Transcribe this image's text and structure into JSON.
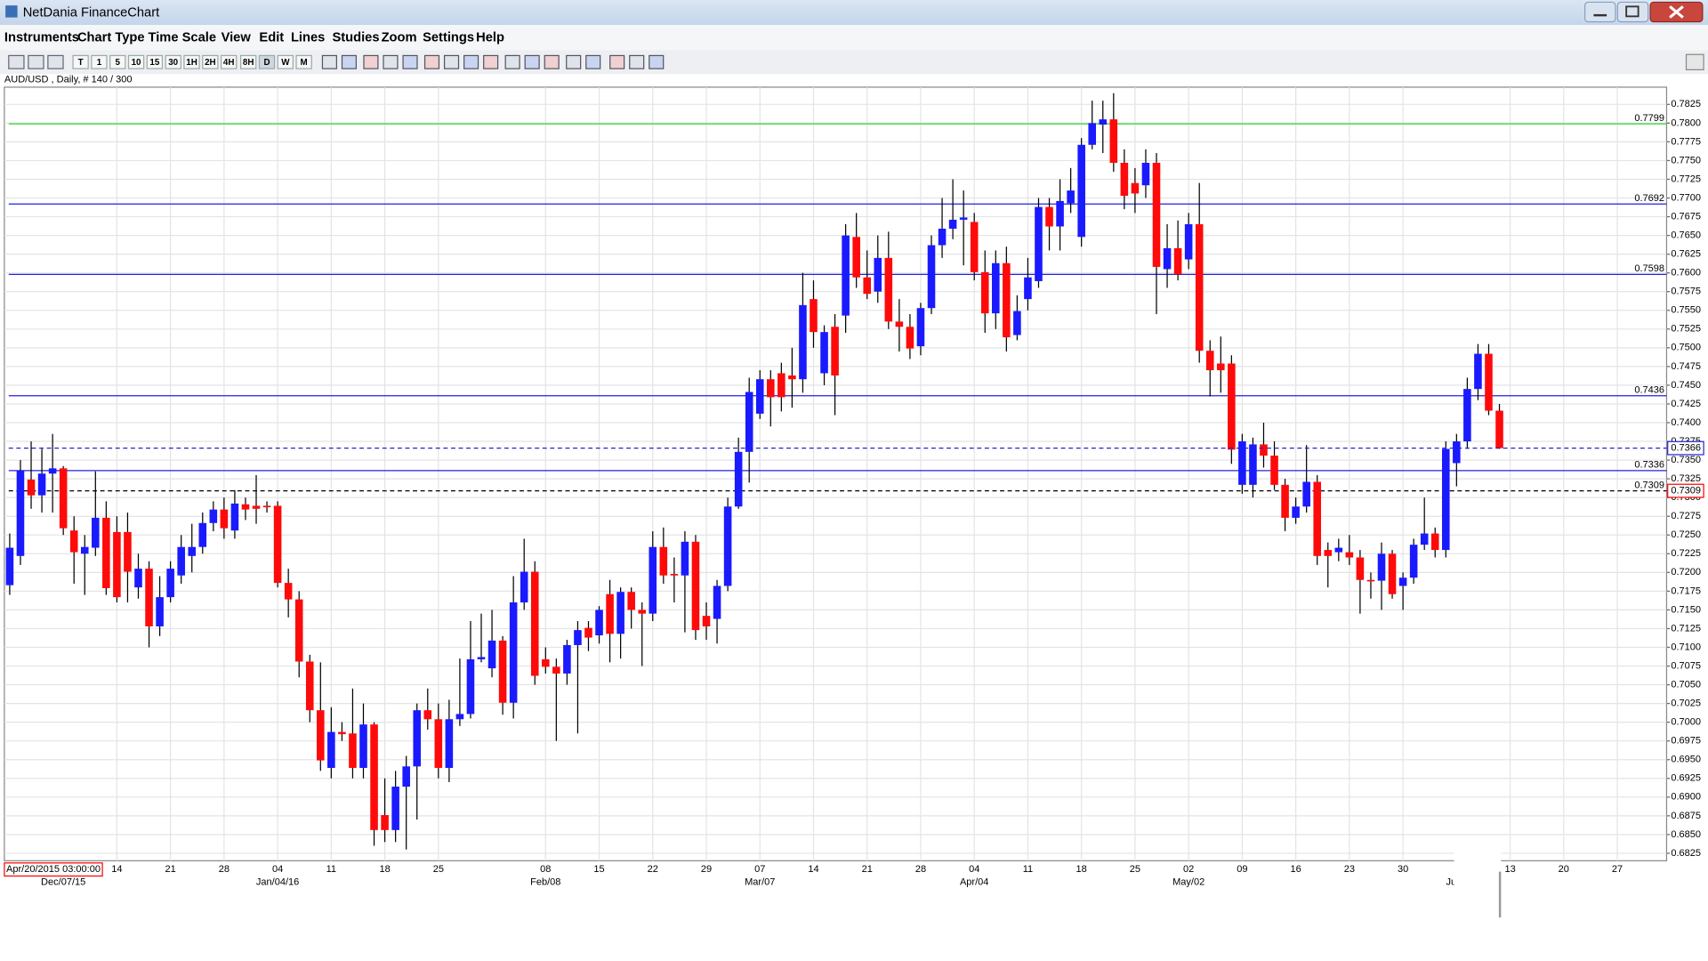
{
  "window": {
    "title": "NetDania FinanceChart",
    "menu": [
      "Instruments",
      "Chart Type",
      "Time Scale",
      "View",
      "Edit",
      "Lines",
      "Studies",
      "Zoom",
      "Settings",
      "Help"
    ],
    "timeframes": [
      "T",
      "1",
      "5",
      "10",
      "15",
      "30",
      "1H",
      "2H",
      "4H",
      "8H",
      "D",
      "W",
      "M"
    ],
    "info": "AUD/USD , Daily, # 140 / 300"
  },
  "chart_data": {
    "type": "candlestick",
    "up_color": "#1a1aff",
    "down_color": "#ff0a0a",
    "grid": true,
    "ylim": [
      0.6815,
      0.7848
    ],
    "xlim": [
      -0.5,
      154.6
    ],
    "yticks": [
      0.6825,
      {
        "value": 0.685,
        "label": "0.6850"
      },
      0.6875,
      {
        "value": 0.69,
        "label": "0.6900"
      },
      0.6925,
      {
        "value": 0.695,
        "label": "0.6950"
      },
      0.6975,
      {
        "value": 0.7,
        "label": "0.7000"
      },
      0.7025,
      {
        "value": 0.705,
        "label": "0.7050"
      },
      0.7075,
      {
        "value": 0.71,
        "label": "0.7100"
      },
      0.7125,
      {
        "value": 0.715,
        "label": "0.7150"
      },
      0.7175,
      {
        "value": 0.72,
        "label": "0.7200"
      },
      0.7225,
      {
        "value": 0.725,
        "label": "0.7250"
      },
      0.7275,
      {
        "value": 0.73,
        "label": "0.7300"
      },
      0.7325,
      {
        "value": 0.735,
        "label": "0.7350"
      },
      0.7375,
      {
        "value": 0.74,
        "label": "0.7400"
      },
      0.7425,
      {
        "value": 0.745,
        "label": "0.7450"
      },
      0.7475,
      {
        "value": 0.75,
        "label": "0.7500"
      },
      0.7525,
      {
        "value": 0.755,
        "label": "0.7550"
      },
      0.7575,
      {
        "value": 0.76,
        "label": "0.7600"
      },
      0.7625,
      {
        "value": 0.765,
        "label": "0.7650"
      },
      0.7675,
      {
        "value": 0.77,
        "label": "0.7700"
      },
      0.7725,
      {
        "value": 0.775,
        "label": "0.7750"
      },
      0.7775,
      {
        "value": 0.78,
        "label": "0.7800"
      },
      0.7825
    ],
    "xticks": [
      {
        "value": 10,
        "label": "14"
      },
      {
        "value": 15,
        "label": "21"
      },
      {
        "value": 20,
        "label": "28"
      },
      {
        "value": 25,
        "label": "04"
      },
      {
        "value": 30,
        "label": "11"
      },
      {
        "value": 35,
        "label": "18"
      },
      {
        "value": 40,
        "label": "25"
      },
      {
        "value": 50,
        "label": "08"
      },
      {
        "value": 55,
        "label": "15"
      },
      {
        "value": 60,
        "label": "22"
      },
      {
        "value": 65,
        "label": "29"
      },
      {
        "value": 70,
        "label": "07"
      },
      {
        "value": 75,
        "label": "14"
      },
      {
        "value": 80,
        "label": "21"
      },
      {
        "value": 85,
        "label": "28"
      },
      {
        "value": 90,
        "label": "04"
      },
      {
        "value": 95,
        "label": "11"
      },
      {
        "value": 100,
        "label": "18"
      },
      {
        "value": 105,
        "label": "25"
      },
      {
        "value": 110,
        "label": "02"
      },
      {
        "value": 115,
        "label": "09"
      },
      {
        "value": 120,
        "label": "16"
      },
      {
        "value": 125,
        "label": "23"
      },
      {
        "value": 130,
        "label": "30"
      },
      {
        "value": 140,
        "label": "13"
      },
      {
        "value": 145,
        "label": "20"
      },
      {
        "value": 150,
        "label": "27"
      }
    ],
    "xticks_major": [
      {
        "value": 5,
        "label": "Dec/07/15"
      },
      {
        "value": 25,
        "label": "Jan/04/16"
      },
      {
        "value": 50,
        "label": "Feb/08"
      },
      {
        "value": 70,
        "label": "Mar/07"
      },
      {
        "value": 90,
        "label": "Apr/04"
      },
      {
        "value": 110,
        "label": "May/02"
      },
      {
        "value": 134.5,
        "label": "Ju"
      }
    ],
    "cursor_label": "Apr/20/2015 03:00:00",
    "lines": [
      {
        "value": 0.7799,
        "color": "#22cc22"
      },
      {
        "value": 0.7692,
        "color": "#2222dd"
      },
      {
        "value": 0.7598,
        "color": "#2222dd"
      },
      {
        "value": 0.7436,
        "color": "#2222dd"
      },
      {
        "value": 0.7336,
        "color": "#2222dd"
      },
      {
        "value": 0.7309,
        "color": "#000000",
        "dash": true
      }
    ],
    "price_markers": [
      {
        "value": 0.7366,
        "color": "#2222dd",
        "dash": true
      },
      {
        "value": 0.7309,
        "color": "#ff0000"
      }
    ],
    "open": [
      0.7183,
      0.7222,
      0.7324,
      0.7303,
      0.7332,
      0.7339,
      0.7256,
      0.7225,
      0.7233,
      0.7273,
      0.7254,
      0.7254,
      0.718,
      0.7205,
      0.7128,
      0.7167,
      0.7196,
      0.7222,
      0.7234,
      0.7266,
      0.7284,
      0.7256,
      0.7291,
      0.7289,
      0.7289,
      0.7289,
      0.7186,
      0.7164,
      0.7081,
      0.7016,
      0.6939,
      0.6987,
      0.6985,
      0.6939,
      0.6997,
      0.6876,
      0.6856,
      0.6914,
      0.6941,
      0.7016,
      0.7004,
      0.6939,
      0.7004,
      0.7011,
      0.7084,
      0.7072,
      0.7109,
      0.7026,
      0.716,
      0.7201,
      0.7084,
      0.7074,
      0.7065,
      0.7103,
      0.7126,
      0.7116,
      0.7171,
      0.7118,
      0.7174,
      0.715,
      0.7145,
      0.7234,
      0.7198,
      0.7196,
      0.7241,
      0.7142,
      0.7138,
      0.7182,
      0.7288,
      0.7361,
      0.7412,
      0.7458,
      0.7466,
      0.7463,
      0.7458,
      0.7565,
      0.7466,
      0.7528,
      0.7543,
      0.7648,
      0.7594,
      0.7575,
      0.762,
      0.7535,
      0.7528,
      0.7502,
      0.7553,
      0.7637,
      0.7659,
      0.7671,
      0.7668,
      0.7601,
      0.7546,
      0.7613,
      0.7517,
      0.7565,
      0.7589,
      0.7688,
      0.7662,
      0.7693,
      0.7648,
      0.7771,
      0.7798,
      0.7805,
      0.7747,
      0.772,
      0.7717,
      0.7747,
      0.7605,
      0.7633,
      0.7618,
      0.7665,
      0.7496,
      0.7479,
      0.7479,
      0.7317,
      0.7317,
      0.7371,
      0.7356,
      0.7317,
      0.7273,
      0.7288,
      0.7321,
      0.723,
      0.7227,
      0.7227,
      0.722,
      0.719,
      0.7189,
      0.7225,
      0.7182,
      0.7193,
      0.7237,
      0.7252,
      0.723,
      0.7346,
      0.7375,
      0.7445,
      0.7492,
      0.7416
    ],
    "high": [
      0.7252,
      0.735,
      0.7375,
      0.7365,
      0.7385,
      0.7342,
      0.7275,
      0.725,
      0.7335,
      0.7295,
      0.7275,
      0.728,
      0.7225,
      0.7215,
      0.7195,
      0.7215,
      0.725,
      0.7265,
      0.728,
      0.7295,
      0.73,
      0.731,
      0.73,
      0.733,
      0.7295,
      0.7295,
      0.7205,
      0.7175,
      0.709,
      0.708,
      0.702,
      0.7,
      0.7045,
      0.7025,
      0.7,
      0.6925,
      0.6935,
      0.6955,
      0.7025,
      0.7045,
      0.7025,
      0.703,
      0.7085,
      0.7135,
      0.7145,
      0.715,
      0.7115,
      0.7195,
      0.7245,
      0.7215,
      0.71,
      0.7085,
      0.711,
      0.7135,
      0.7135,
      0.7155,
      0.719,
      0.718,
      0.718,
      0.716,
      0.7255,
      0.726,
      0.722,
      0.7255,
      0.725,
      0.716,
      0.719,
      0.73,
      0.738,
      0.746,
      0.747,
      0.747,
      0.748,
      0.75,
      0.76,
      0.759,
      0.753,
      0.7545,
      0.7665,
      0.768,
      0.763,
      0.765,
      0.7655,
      0.7565,
      0.7545,
      0.756,
      0.765,
      0.77,
      0.7725,
      0.771,
      0.768,
      0.763,
      0.763,
      0.7635,
      0.757,
      0.762,
      0.77,
      0.77,
      0.7725,
      0.774,
      0.778,
      0.783,
      0.783,
      0.784,
      0.7765,
      0.774,
      0.7765,
      0.776,
      0.7665,
      0.767,
      0.768,
      0.772,
      0.751,
      0.7515,
      0.749,
      0.7385,
      0.738,
      0.74,
      0.7375,
      0.7325,
      0.73,
      0.737,
      0.733,
      0.724,
      0.7245,
      0.725,
      0.723,
      0.72,
      0.724,
      0.723,
      0.72,
      0.7245,
      0.73,
      0.726,
      0.7375,
      0.7385,
      0.746,
      0.7505,
      0.7505,
      0.7425
    ],
    "low": [
      0.717,
      0.721,
      0.7285,
      0.728,
      0.728,
      0.725,
      0.7185,
      0.717,
      0.7222,
      0.717,
      0.716,
      0.716,
      0.7165,
      0.71,
      0.7115,
      0.716,
      0.7185,
      0.72,
      0.7225,
      0.7255,
      0.7245,
      0.7245,
      0.727,
      0.7265,
      0.728,
      0.718,
      0.714,
      0.706,
      0.7,
      0.6935,
      0.6925,
      0.6975,
      0.6925,
      0.6925,
      0.6835,
      0.684,
      0.684,
      0.683,
      0.687,
      0.699,
      0.6925,
      0.692,
      0.6995,
      0.7005,
      0.708,
      0.706,
      0.701,
      0.7005,
      0.715,
      0.705,
      0.7065,
      0.6975,
      0.705,
      0.6985,
      0.7095,
      0.7105,
      0.708,
      0.7085,
      0.7125,
      0.7075,
      0.7135,
      0.7185,
      0.716,
      0.712,
      0.711,
      0.711,
      0.7105,
      0.7175,
      0.7285,
      0.732,
      0.7405,
      0.7395,
      0.7415,
      0.742,
      0.744,
      0.75,
      0.745,
      0.741,
      0.752,
      0.758,
      0.7565,
      0.756,
      0.7525,
      0.7495,
      0.7485,
      0.749,
      0.7545,
      0.762,
      0.7645,
      0.761,
      0.759,
      0.752,
      0.7525,
      0.7495,
      0.751,
      0.755,
      0.758,
      0.763,
      0.763,
      0.768,
      0.7635,
      0.7765,
      0.776,
      0.7735,
      0.7685,
      0.768,
      0.77,
      0.7545,
      0.758,
      0.759,
      0.7605,
      0.748,
      0.7435,
      0.744,
      0.7345,
      0.7305,
      0.73,
      0.734,
      0.731,
      0.7255,
      0.7265,
      0.728,
      0.721,
      0.718,
      0.7215,
      0.721,
      0.7145,
      0.7165,
      0.715,
      0.7165,
      0.715,
      0.7185,
      0.723,
      0.722,
      0.722,
      0.7315,
      0.7365,
      0.743,
      0.741,
      0.7365
    ],
    "close": [
      0.7233,
      0.7336,
      0.7303,
      0.7332,
      0.7339,
      0.7259,
      0.7227,
      0.7234,
      0.7273,
      0.7179,
      0.7167,
      0.7201,
      0.7205,
      0.7128,
      0.7167,
      0.7205,
      0.7234,
      0.7234,
      0.7266,
      0.7284,
      0.7259,
      0.7292,
      0.7284,
      0.7285,
      0.7287,
      0.7186,
      0.7164,
      0.7081,
      0.7016,
      0.6949,
      0.6987,
      0.6984,
      0.6939,
      0.6997,
      0.6856,
      0.6856,
      0.6914,
      0.6941,
      0.7016,
      0.7004,
      0.6939,
      0.7004,
      0.7011,
      0.7084,
      0.7087,
      0.7109,
      0.7026,
      0.716,
      0.7201,
      0.7062,
      0.7074,
      0.7065,
      0.7103,
      0.7123,
      0.7113,
      0.715,
      0.7118,
      0.7174,
      0.715,
      0.7145,
      0.7234,
      0.7196,
      0.7196,
      0.7241,
      0.7123,
      0.7128,
      0.7182,
      0.7288,
      0.7361,
      0.7441,
      0.7458,
      0.7434,
      0.7434,
      0.7458,
      0.7557,
      0.7521,
      0.7521,
      0.7463,
      0.765,
      0.7594,
      0.7572,
      0.762,
      0.7535,
      0.7528,
      0.7499,
      0.7553,
      0.7637,
      0.7659,
      0.7671,
      0.7674,
      0.7601,
      0.7546,
      0.7613,
      0.7514,
      0.7549,
      0.7594,
      0.7688,
      0.7662,
      0.7696,
      0.771,
      0.7771,
      0.78,
      0.7805,
      0.7747,
      0.7703,
      0.7706,
      0.7747,
      0.7608,
      0.7633,
      0.7598,
      0.7665,
      0.7496,
      0.747,
      0.747,
      0.7364,
      0.7375,
      0.7371,
      0.7356,
      0.7317,
      0.7273,
      0.7288,
      0.7321,
      0.7222,
      0.7222,
      0.7233,
      0.722,
      0.719,
      0.7188,
      0.7225,
      0.7171,
      0.7193,
      0.7237,
      0.7252,
      0.723,
      0.7365,
      0.7375,
      0.7445,
      0.7492,
      0.7416,
      0.7366
    ]
  }
}
